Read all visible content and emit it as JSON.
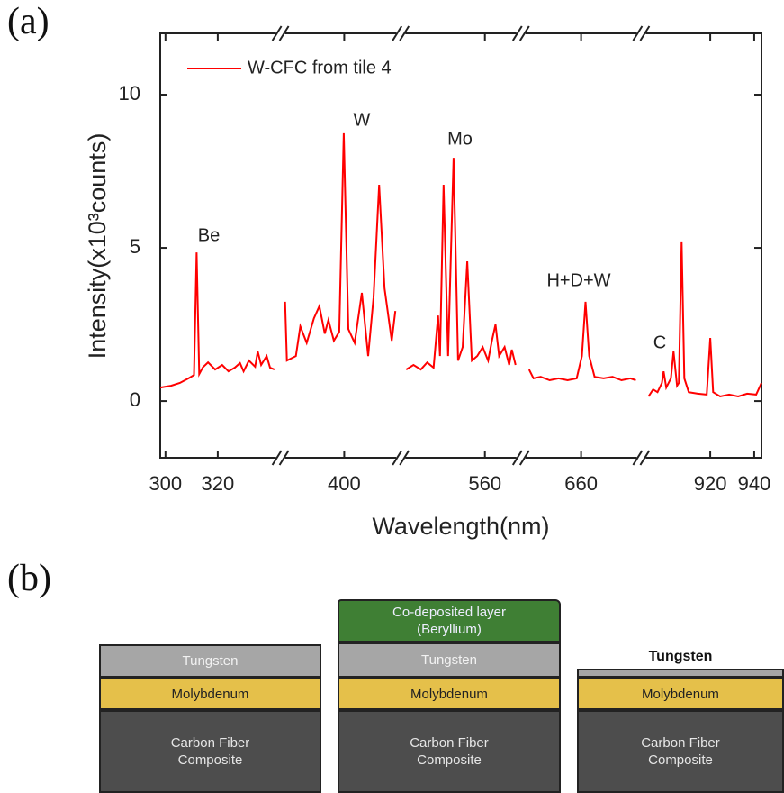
{
  "panel_a": "(a)",
  "chart_data": {
    "type": "line",
    "xlabel": "Wavelength(nm)",
    "ylabel": "Intensity(x10³counts)",
    "ylim": [
      -1.85,
      12
    ],
    "yticks": [
      0,
      5,
      10
    ],
    "series": [
      {
        "name": "W-CFC from tile 4",
        "color": "#ff0000"
      }
    ],
    "legend": "upper left",
    "annotations": [
      "Be",
      "W",
      "Mo",
      "H+D+W",
      "C"
    ],
    "segments": [
      {
        "xlim": [
          298,
          344
        ],
        "xticks": [
          300,
          320
        ],
        "x": [
          298,
          302.1,
          305.5,
          308.8,
          310.9,
          311.9,
          312.9,
          314.3,
          316.3,
          319.0,
          321.7,
          324.1,
          326.5,
          328.5,
          329.9,
          331.9,
          334.3,
          335.3,
          336.6,
          338.7,
          340.0,
          341.7
        ],
        "values": [
          0.44,
          0.5,
          0.59,
          0.74,
          0.85,
          4.85,
          0.88,
          1.1,
          1.26,
          1.03,
          1.18,
          0.97,
          1.09,
          1.24,
          0.97,
          1.32,
          1.12,
          1.62,
          1.18,
          1.47,
          1.09,
          1.03
        ]
      },
      {
        "xlim": [
          347,
          447
        ],
        "xticks": [
          400
        ],
        "x": [
          350.8,
          352.3,
          359.8,
          363.5,
          368.8,
          374.8,
          379.3,
          383.8,
          386.8,
          391.4,
          395.9,
          399.6,
          403.4,
          408.7,
          414.7,
          419.9,
          424.4,
          429.0,
          433.5,
          439.5,
          442.5
        ],
        "values": [
          3.24,
          1.32,
          1.47,
          2.44,
          1.9,
          2.7,
          3.1,
          2.2,
          2.65,
          1.97,
          2.26,
          8.74,
          2.35,
          1.9,
          3.53,
          1.47,
          3.38,
          7.06,
          3.68,
          1.97,
          2.94
        ]
      },
      {
        "xlim": [
          490,
          590
        ],
        "xticks": [
          560
        ],
        "x": [
          494.5,
          500.6,
          506.7,
          512.0,
          517.3,
          521.1,
          522.6,
          525.6,
          529.4,
          533.9,
          537.7,
          541.5,
          545.3,
          549.1,
          553.6,
          558.2,
          562.7,
          565.8,
          568.8,
          571.8,
          576.4,
          580.2,
          582.4,
          585.5
        ],
        "values": [
          1.03,
          1.18,
          1.03,
          1.26,
          1.09,
          2.79,
          1.47,
          7.06,
          1.47,
          7.94,
          1.32,
          1.76,
          4.56,
          1.32,
          1.47,
          1.76,
          1.32,
          1.97,
          2.5,
          1.47,
          1.76,
          1.18,
          1.68,
          1.18
        ]
      },
      {
        "xlim": [
          610,
          710
        ],
        "xticks": [
          660
        ],
        "x": [
          616.7,
          620.4,
          626.4,
          633.9,
          641.3,
          648.8,
          656.3,
          660.7,
          663.7,
          666.7,
          671.2,
          678.7,
          686.1,
          693.6,
          701.0,
          705.5
        ],
        "values": [
          1.03,
          0.74,
          0.79,
          0.68,
          0.74,
          0.68,
          0.74,
          1.47,
          3.24,
          1.47,
          0.79,
          0.74,
          0.79,
          0.68,
          0.74,
          0.68
        ]
      },
      {
        "xlim": [
          888.6,
          943.3
        ],
        "xticks": [
          920,
          940
        ],
        "x": [
          891.9,
          894.0,
          896.0,
          898.0,
          898.8,
          900.0,
          902.1,
          903.3,
          904.9,
          905.7,
          907.0,
          908.2,
          910.2,
          914.3,
          918.4,
          920.0,
          921.3,
          924.5,
          928.6,
          932.7,
          936.8,
          940.9,
          943.3
        ],
        "values": [
          0.15,
          0.38,
          0.29,
          0.59,
          0.97,
          0.44,
          0.74,
          1.62,
          0.5,
          0.59,
          5.21,
          0.74,
          0.29,
          0.24,
          0.21,
          2.06,
          0.29,
          0.15,
          0.21,
          0.15,
          0.24,
          0.21,
          0.59
        ]
      }
    ]
  },
  "diagram": {
    "panel_label": "(b)",
    "stacks": [
      {
        "layers": [
          "Tungsten",
          "Molybdenum",
          "Carbon Fiber Composite"
        ]
      },
      {
        "layers": [
          "Co-deposited layer (Beryllium)",
          "Tungsten",
          "Molybdenum",
          "Carbon Fiber Composite"
        ]
      },
      {
        "layers": [
          "Tungsten",
          "Molybdenum",
          "Carbon Fiber Composite"
        ]
      }
    ]
  }
}
